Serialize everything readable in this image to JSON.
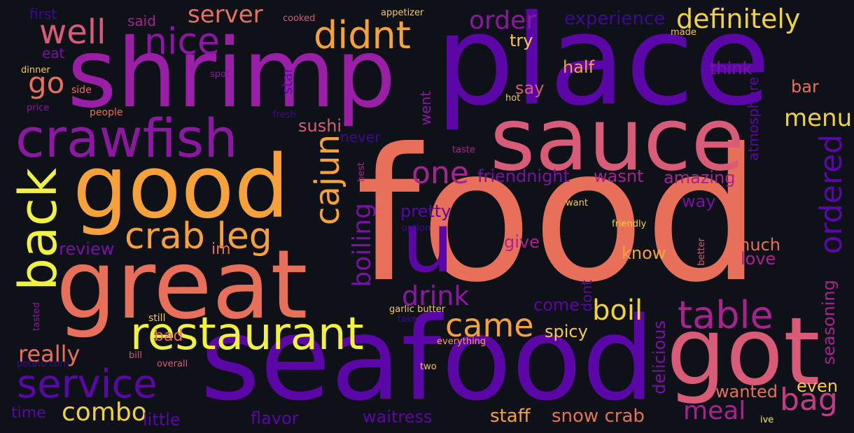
{
  "wordcloud": {
    "words": [
      {
        "text": "food",
        "color": "#e8705a"
      },
      {
        "text": "place",
        "color": "#5b07a8"
      },
      {
        "text": "shrimp",
        "color": "#9b1ea6"
      },
      {
        "text": "seafood",
        "color": "#5b07a8"
      },
      {
        "text": "great",
        "color": "#e8705a"
      },
      {
        "text": "good",
        "color": "#f7a13a"
      },
      {
        "text": "sauce",
        "color": "#d85c78"
      },
      {
        "text": "got",
        "color": "#d85c78"
      },
      {
        "text": "crawfish",
        "color": "#8d16a2"
      },
      {
        "text": "u",
        "color": "#5b07a8"
      },
      {
        "text": "restaurant",
        "color": "#f1f140"
      },
      {
        "text": "back",
        "color": "#f1f140"
      },
      {
        "text": "service",
        "color": "#5b07a8"
      },
      {
        "text": "crab leg",
        "color": "#f7a13a"
      },
      {
        "text": "didnt",
        "color": "#f7a13a"
      },
      {
        "text": "nice",
        "color": "#8d16a2"
      },
      {
        "text": "well",
        "color": "#d85c78"
      },
      {
        "text": "definitely",
        "color": "#f1d23a"
      },
      {
        "text": "cajun",
        "color": "#f7a13a"
      },
      {
        "text": "table",
        "color": "#a8238f"
      },
      {
        "text": "bag",
        "color": "#c33a85"
      },
      {
        "text": "came",
        "color": "#f7a13a"
      },
      {
        "text": "one",
        "color": "#a8238f"
      },
      {
        "text": "ordered",
        "color": "#5b07a8"
      },
      {
        "text": "boil",
        "color": "#f1d23a"
      },
      {
        "text": "combo",
        "color": "#f1d23a"
      },
      {
        "text": "really",
        "color": "#e8705a"
      },
      {
        "text": "meal",
        "color": "#a8238f"
      },
      {
        "text": "drink",
        "color": "#8d16a2"
      },
      {
        "text": "server",
        "color": "#e8705a"
      },
      {
        "text": "order",
        "color": "#8d16a2"
      },
      {
        "text": "go",
        "color": "#e8705a"
      },
      {
        "text": "boiling",
        "color": "#7a11a5"
      },
      {
        "text": "menu",
        "color": "#f1d23a"
      },
      {
        "text": "staff",
        "color": "#f7a13a"
      },
      {
        "text": "snow crab",
        "color": "#e8705a"
      },
      {
        "text": "experience",
        "color": "#3d0b8f"
      },
      {
        "text": "sushi",
        "color": "#d85c78"
      },
      {
        "text": "friendnight",
        "color": "#7a11a5"
      },
      {
        "text": "wasnt",
        "color": "#a8238f"
      },
      {
        "text": "amazing",
        "color": "#a8238f"
      },
      {
        "text": "review",
        "color": "#7a11a5"
      },
      {
        "text": "pretty",
        "color": "#5b07a8"
      },
      {
        "text": "come",
        "color": "#5b07a8"
      },
      {
        "text": "spicy",
        "color": "#f7c84a"
      },
      {
        "text": "wanted",
        "color": "#e8705a"
      },
      {
        "text": "much",
        "color": "#e8705a"
      },
      {
        "text": "love",
        "color": "#a8238f"
      },
      {
        "text": "know",
        "color": "#f7a13a"
      },
      {
        "text": "give",
        "color": "#a8238f"
      },
      {
        "text": "half",
        "color": "#f7a13a"
      },
      {
        "text": "think",
        "color": "#7a11a5"
      },
      {
        "text": "bar",
        "color": "#e8705a"
      },
      {
        "text": "say",
        "color": "#d85c78"
      },
      {
        "text": "way",
        "color": "#7a11a5"
      },
      {
        "text": "try",
        "color": "#f7c84a"
      },
      {
        "text": "even",
        "color": "#f7c84a"
      },
      {
        "text": "seasoning",
        "color": "#a8238f"
      },
      {
        "text": "delicious",
        "color": "#7a11a5"
      },
      {
        "text": "atmosphere",
        "color": "#5b07a8"
      },
      {
        "text": "flavor",
        "color": "#5b07a8"
      },
      {
        "text": "waitress",
        "color": "#5b07a8"
      },
      {
        "text": "little",
        "color": "#5b07a8"
      },
      {
        "text": "time",
        "color": "#5b07a8"
      },
      {
        "text": "bad",
        "color": "#e8705a"
      },
      {
        "text": "im",
        "color": "#e8705a"
      },
      {
        "text": "went",
        "color": "#8d16a2"
      },
      {
        "text": "never",
        "color": "#3d0b8f"
      },
      {
        "text": "star",
        "color": "#5b07a8"
      },
      {
        "text": "dont",
        "color": "#5b07a8"
      },
      {
        "text": "eat",
        "color": "#7a11a5"
      },
      {
        "text": "first",
        "color": "#3d0b8f"
      },
      {
        "text": "said",
        "color": "#a8238f"
      },
      {
        "text": "people",
        "color": "#e8705a"
      },
      {
        "text": "dinner",
        "color": "#f7c84a"
      },
      {
        "text": "side",
        "color": "#e8705a"
      },
      {
        "text": "price",
        "color": "#8d16a2"
      },
      {
        "text": "spot",
        "color": "#8d16a2"
      },
      {
        "text": "fresh",
        "color": "#3d0b8f"
      },
      {
        "text": "cooked",
        "color": "#d85c78"
      },
      {
        "text": "appetizer",
        "color": "#f7c84a"
      },
      {
        "text": "made",
        "color": "#f7c84a"
      },
      {
        "text": "hot",
        "color": "#f7c84a"
      },
      {
        "text": "taste",
        "color": "#a8238f"
      },
      {
        "text": "best",
        "color": "#a8238f"
      },
      {
        "text": "want",
        "color": "#f7c84a"
      },
      {
        "text": "option",
        "color": "#3d0b8f"
      },
      {
        "text": "friendly",
        "color": "#f1d23a"
      },
      {
        "text": "better",
        "color": "#d85c78"
      },
      {
        "text": "garlic butter",
        "color": "#f7c84a"
      },
      {
        "text": "take",
        "color": "#3d0b8f"
      },
      {
        "text": "still",
        "color": "#f7c84a"
      },
      {
        "text": "everything",
        "color": "#f7a13a"
      },
      {
        "text": "bill",
        "color": "#d85c78"
      },
      {
        "text": "overall",
        "color": "#d85c78"
      },
      {
        "text": "two",
        "color": "#f7c84a"
      },
      {
        "text": "ive",
        "color": "#f1f140"
      },
      {
        "text": "tasted",
        "color": "#8d16a2"
      },
      {
        "text": "potato corn",
        "color": "#3d0b8f"
      }
    ]
  }
}
